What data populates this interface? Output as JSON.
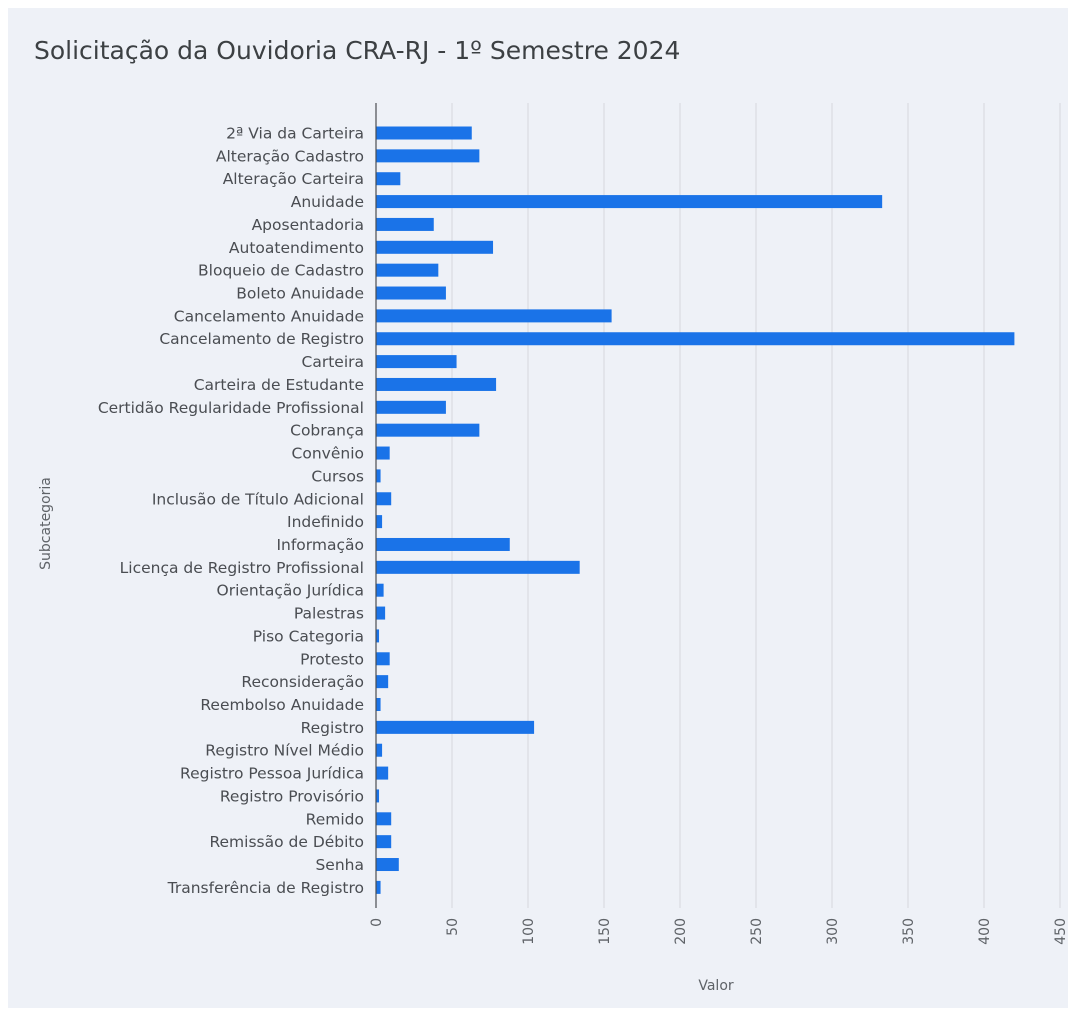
{
  "title": "Solicitação da Ouvidoria CRA-RJ - 1º Semestre 2024",
  "chart_data": {
    "type": "bar",
    "orientation": "horizontal",
    "title": "Solicitação da Ouvidoria CRA-RJ - 1º Semestre 2024",
    "xlabel": "Valor",
    "ylabel": "Subcategoria",
    "xlim": [
      0,
      450
    ],
    "xticks": [
      0,
      50,
      100,
      150,
      200,
      250,
      300,
      350,
      400,
      450
    ],
    "grid": true,
    "bar_color": "#1a73e8",
    "categories": [
      "2ª Via da Carteira",
      "Alteração Cadastro",
      "Alteração Carteira",
      "Anuidade",
      "Aposentadoria",
      "Autoatendimento",
      "Bloqueio de Cadastro",
      "Boleto Anuidade",
      "Cancelamento Anuidade",
      "Cancelamento de Registro",
      "Carteira",
      "Carteira de Estudante",
      "Certidão Regularidade Profissional",
      "Cobrança",
      "Convênio",
      "Cursos",
      "Inclusão de Título Adicional",
      "Indefinido",
      "Informação",
      "Licença de Registro Profissional",
      "Orientação Jurídica",
      "Palestras",
      "Piso Categoria",
      "Protesto",
      "Reconsideração",
      "Reembolso Anuidade",
      "Registro",
      "Registro Nível Médio",
      "Registro Pessoa Jurídica",
      "Registro Provisório",
      "Remido",
      "Remissão de Débito",
      "Senha",
      "Transferência de Registro"
    ],
    "values": [
      63,
      68,
      16,
      333,
      38,
      77,
      41,
      46,
      155,
      420,
      53,
      79,
      46,
      68,
      9,
      3,
      10,
      4,
      88,
      134,
      5,
      6,
      2,
      9,
      8,
      3,
      104,
      4,
      8,
      2,
      10,
      10,
      15,
      3
    ]
  }
}
